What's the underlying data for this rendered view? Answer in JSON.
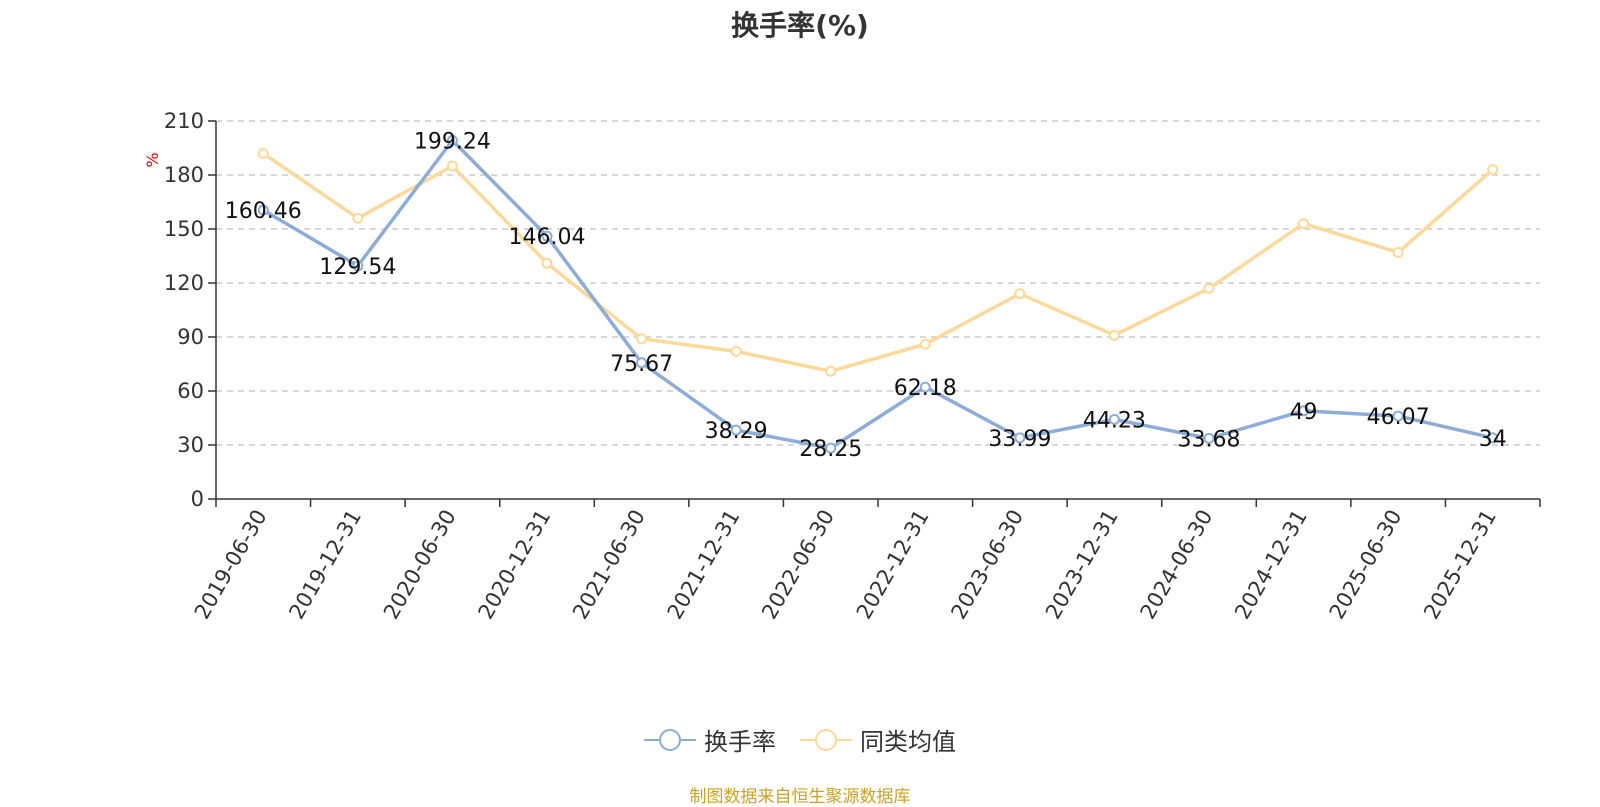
{
  "title": "换手率(%)",
  "source": "制图数据来自恒生聚源数据库",
  "chart_data": {
    "type": "line",
    "title": "换手率(%)",
    "ylabel": "%",
    "ylim": [
      0,
      210
    ],
    "yticks": [
      0,
      30,
      60,
      90,
      120,
      150,
      180,
      210
    ],
    "grid": true,
    "legend_position": "bottom",
    "categories": [
      "2019-06-30",
      "2019-12-31",
      "2020-06-30",
      "2020-12-31",
      "2021-06-30",
      "2021-12-31",
      "2022-06-30",
      "2022-12-31",
      "2023-06-30",
      "2023-12-31",
      "2024-06-30",
      "2024-12-31",
      "2025-06-30",
      "2025-12-31"
    ],
    "series": [
      {
        "name": "换手率",
        "color": "#8eacd8",
        "show_labels": true,
        "values": [
          160.46,
          129.54,
          199.24,
          146.04,
          75.67,
          38.29,
          28.25,
          62.18,
          33.99,
          44.23,
          33.68,
          49,
          46.07,
          34
        ]
      },
      {
        "name": "同类均值",
        "color": "#fbd99a",
        "show_labels": false,
        "values": [
          192,
          156,
          185,
          131,
          89,
          82,
          71,
          86,
          114,
          91,
          117,
          153,
          137,
          183
        ]
      }
    ]
  }
}
